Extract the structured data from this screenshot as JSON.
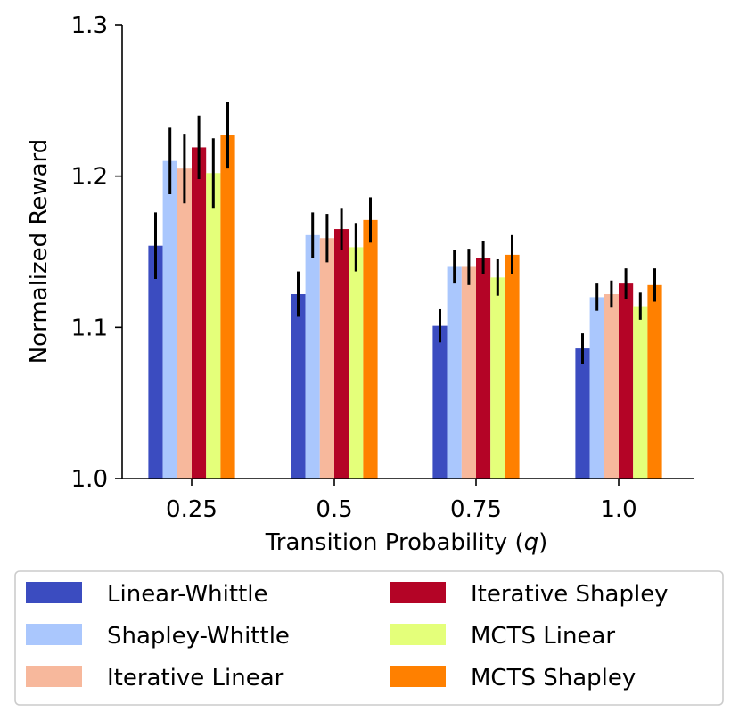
{
  "chart_data": {
    "type": "bar",
    "title": "",
    "xlabel": "Transition Probability (",
    "xlabel_var": "q",
    "xlabel_close": ")",
    "ylabel": "Normalized Reward",
    "ylim": [
      1.0,
      1.3
    ],
    "yticks": [
      "1.0",
      "1.1",
      "1.2",
      "1.3"
    ],
    "categories": [
      "0.25",
      "0.5",
      "0.75",
      "1.0"
    ],
    "legend_position": "below",
    "series": [
      {
        "name": "Linear-Whittle",
        "color": "#3b4cc0",
        "values": [
          1.154,
          1.122,
          1.101,
          1.086
        ],
        "errors": [
          0.022,
          0.015,
          0.011,
          0.01
        ]
      },
      {
        "name": "Shapley-Whittle",
        "color": "#aac7fd",
        "values": [
          1.21,
          1.161,
          1.14,
          1.12
        ],
        "errors": [
          0.022,
          0.015,
          0.011,
          0.009
        ]
      },
      {
        "name": "Iterative Linear",
        "color": "#f7b89c",
        "values": [
          1.205,
          1.159,
          1.14,
          1.122
        ],
        "errors": [
          0.023,
          0.016,
          0.012,
          0.009
        ]
      },
      {
        "name": "Iterative Shapley",
        "color": "#b40426",
        "values": [
          1.219,
          1.165,
          1.146,
          1.129
        ],
        "errors": [
          0.021,
          0.014,
          0.011,
          0.01
        ]
      },
      {
        "name": "MCTS Linear",
        "color": "#e4ff7a",
        "values": [
          1.202,
          1.153,
          1.133,
          1.114
        ],
        "errors": [
          0.023,
          0.016,
          0.012,
          0.009
        ]
      },
      {
        "name": "MCTS Shapley",
        "color": "#ff8000",
        "values": [
          1.227,
          1.171,
          1.148,
          1.128
        ],
        "errors": [
          0.022,
          0.015,
          0.013,
          0.011
        ]
      }
    ]
  }
}
